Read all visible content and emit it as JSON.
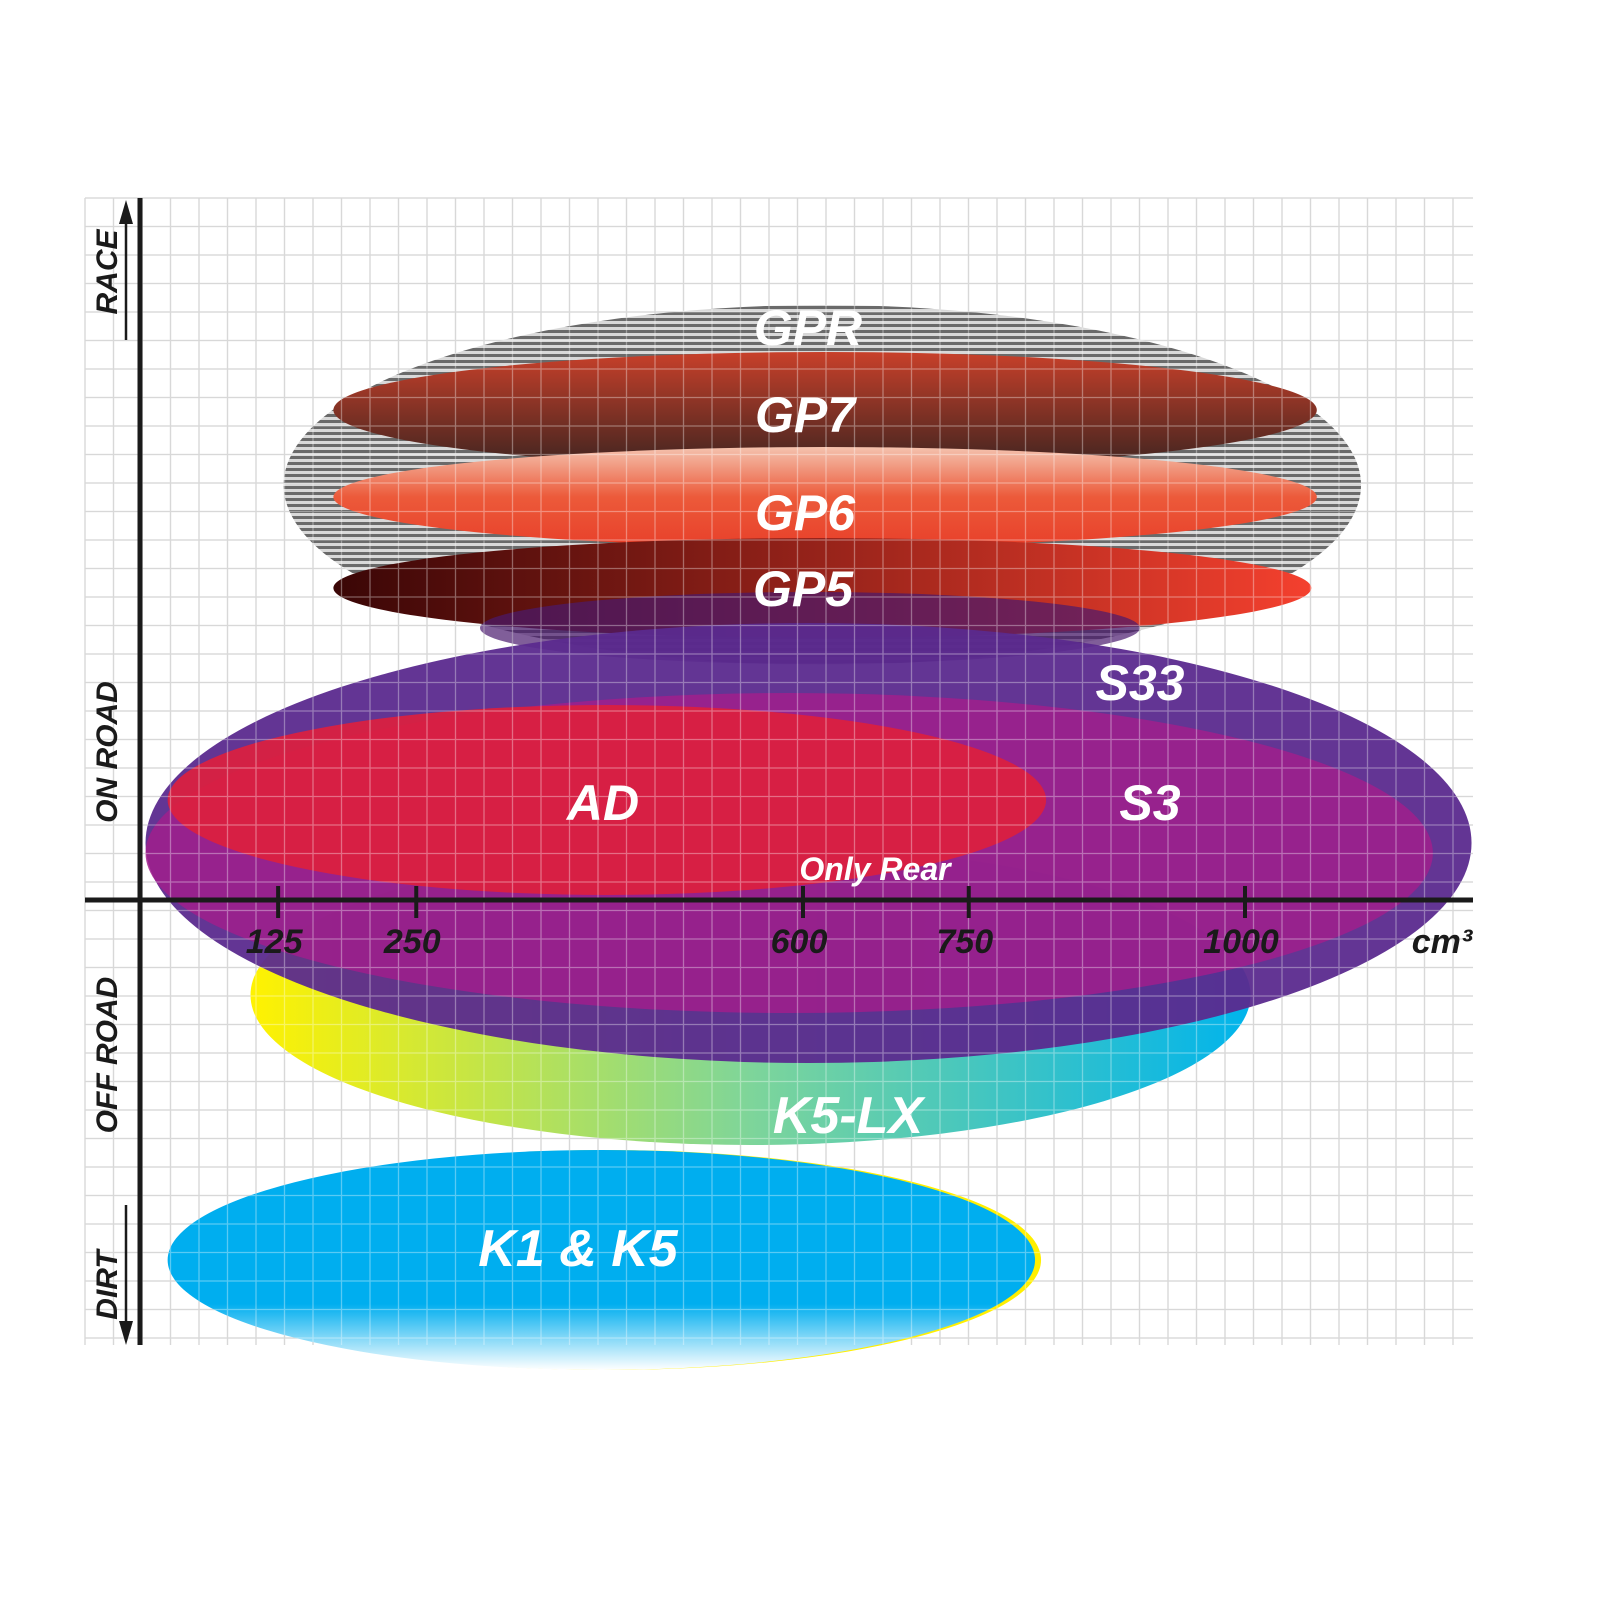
{
  "chart_data": {
    "type": "ellipse-range",
    "xlabel": "cm³",
    "x_ticks": [
      125,
      250,
      600,
      750,
      1000
    ],
    "y_categories": [
      "RACE",
      "ON ROAD",
      "OFF ROAD",
      "DIRT"
    ],
    "grid": true,
    "series": [
      {
        "name": "GPR",
        "cc_range": [
          130,
          1105
        ],
        "color": "#8a8a8a",
        "pattern": "striped"
      },
      {
        "name": "GP7",
        "cc_range": [
          175,
          1065
        ],
        "color": "#c8402a",
        "color2": "#4a2a22"
      },
      {
        "name": "GP6",
        "cc_range": [
          175,
          1065
        ],
        "color": "#f0b49a",
        "color2": "#e8402a"
      },
      {
        "name": "GP5",
        "cc_range": [
          175,
          1060
        ],
        "color": "#4a0a0a",
        "color2": "#f0402a"
      },
      {
        "name": "K5-LX",
        "cc_range": [
          100,
          1005
        ],
        "color": "#ffef00",
        "color2": "#00b8e8"
      },
      {
        "name": "S33",
        "cc_range": [
          5,
          1205
        ],
        "color": "#5b2a8e"
      },
      {
        "name": "S3",
        "cc_range": [
          5,
          1170
        ],
        "color": "#a01f8c"
      },
      {
        "name": "AD",
        "cc_range": [
          25,
          820
        ],
        "color": "#dc1f3e",
        "note": "Only Rear"
      },
      {
        "name": "K1 & K5",
        "cc_range": [
          25,
          810
        ],
        "color": "#00aeef",
        "color2": "#ffef00"
      }
    ]
  }
}
